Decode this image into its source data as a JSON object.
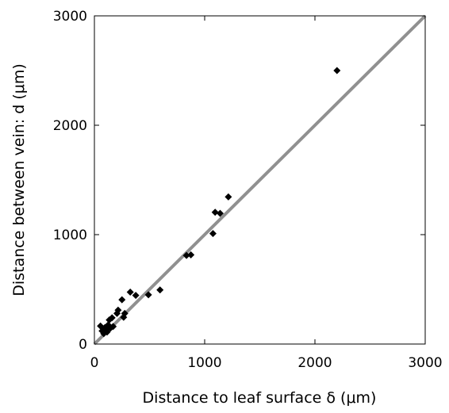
{
  "chart_data": {
    "type": "scatter",
    "title": "",
    "xlabel": "Distance to leaf surface δ (μm)",
    "ylabel": "Distance between vein: d (μm)",
    "xlim": [
      0,
      3000
    ],
    "ylim": [
      0,
      3000
    ],
    "xticks": [
      0,
      1000,
      2000,
      3000
    ],
    "yticks": [
      0,
      1000,
      2000,
      3000
    ],
    "xtick_labels": [
      "0",
      "1000",
      "2000",
      "3000"
    ],
    "ytick_labels": [
      "0",
      "1000",
      "2000",
      "3000"
    ],
    "grid": false,
    "marker": "diamond",
    "marker_color": "#000000",
    "reference_line": {
      "type": "identity",
      "from": [
        0,
        0
      ],
      "to": [
        3000,
        3000
      ],
      "color": "#909090"
    },
    "points": [
      {
        "x": 55,
        "y": 165
      },
      {
        "x": 70,
        "y": 120
      },
      {
        "x": 85,
        "y": 95
      },
      {
        "x": 95,
        "y": 150
      },
      {
        "x": 105,
        "y": 130
      },
      {
        "x": 115,
        "y": 110
      },
      {
        "x": 125,
        "y": 175
      },
      {
        "x": 135,
        "y": 220
      },
      {
        "x": 145,
        "y": 145
      },
      {
        "x": 160,
        "y": 240
      },
      {
        "x": 170,
        "y": 160
      },
      {
        "x": 205,
        "y": 280
      },
      {
        "x": 215,
        "y": 310
      },
      {
        "x": 250,
        "y": 405
      },
      {
        "x": 265,
        "y": 245
      },
      {
        "x": 275,
        "y": 280
      },
      {
        "x": 325,
        "y": 475
      },
      {
        "x": 375,
        "y": 445
      },
      {
        "x": 490,
        "y": 450
      },
      {
        "x": 595,
        "y": 495
      },
      {
        "x": 835,
        "y": 810
      },
      {
        "x": 875,
        "y": 815
      },
      {
        "x": 1075,
        "y": 1010
      },
      {
        "x": 1095,
        "y": 1205
      },
      {
        "x": 1140,
        "y": 1195
      },
      {
        "x": 1215,
        "y": 1345
      },
      {
        "x": 2200,
        "y": 2500
      }
    ]
  }
}
